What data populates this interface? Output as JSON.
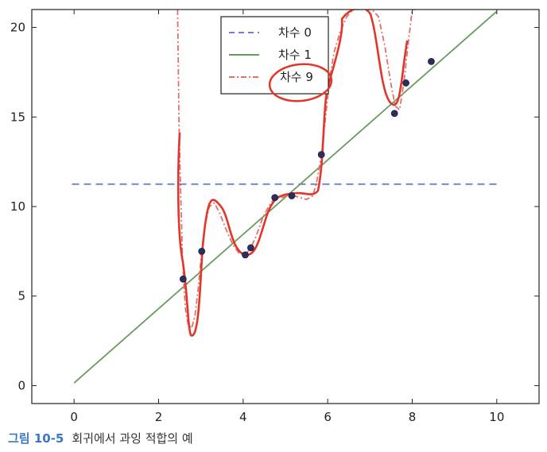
{
  "chart_data": {
    "type": "line",
    "title": "",
    "xlabel": "",
    "ylabel": "",
    "xlim": [
      -1,
      11
    ],
    "ylim": [
      -1,
      21
    ],
    "xticks": [
      0,
      2,
      4,
      6,
      8,
      10
    ],
    "yticks": [
      0,
      5,
      10,
      15,
      20
    ],
    "grid": false,
    "legend_position": "top-center",
    "points": [
      {
        "x": 2.58,
        "y": 5.95
      },
      {
        "x": 3.02,
        "y": 7.5
      },
      {
        "x": 4.05,
        "y": 7.3
      },
      {
        "x": 4.18,
        "y": 7.7
      },
      {
        "x": 4.75,
        "y": 10.5
      },
      {
        "x": 5.15,
        "y": 10.6
      },
      {
        "x": 5.85,
        "y": 12.9
      },
      {
        "x": 7.58,
        "y": 15.2
      },
      {
        "x": 7.85,
        "y": 16.9
      },
      {
        "x": 8.45,
        "y": 18.1
      }
    ],
    "series": [
      {
        "name": "차수 0",
        "style": "dashed",
        "color": "#6b7fd4",
        "x": [
          -0.05,
          10
        ],
        "y": [
          11.25,
          11.25
        ]
      },
      {
        "name": "차수 1",
        "style": "solid",
        "color": "#6a9a60",
        "x": [
          0,
          10
        ],
        "y": [
          0.15,
          20.9
        ]
      },
      {
        "name": "차수 9",
        "style": "dashdot",
        "color": "#e3706c",
        "x": [
          2.45,
          2.48,
          2.52,
          2.56,
          2.6,
          2.64,
          2.7,
          2.78,
          2.86,
          2.94,
          3.02,
          3.1,
          3.2,
          3.32,
          3.45,
          3.6,
          3.75,
          3.9,
          4.05,
          4.18,
          4.3,
          4.45,
          4.6,
          4.75,
          4.9,
          5.05,
          5.2,
          5.35,
          5.5,
          5.65,
          5.75,
          5.85,
          5.95,
          6.05,
          6.15,
          6.3,
          6.45,
          6.6,
          6.75,
          6.9,
          7.05,
          7.2,
          7.35,
          7.5,
          7.6,
          7.7,
          7.8,
          7.9,
          8.0,
          8.08
        ],
        "y": [
          21,
          15,
          11,
          7.5,
          5.5,
          4.2,
          3.4,
          3.2,
          3.9,
          5.5,
          7.5,
          9.0,
          10.0,
          10.2,
          9.6,
          8.7,
          7.9,
          7.4,
          7.3,
          7.7,
          8.3,
          9.3,
          10.0,
          10.5,
          10.5,
          10.6,
          10.6,
          10.5,
          10.4,
          10.6,
          11.5,
          12.9,
          15.0,
          17.2,
          18.6,
          19.8,
          20.6,
          21,
          21,
          21,
          21,
          20.6,
          19.0,
          16.8,
          15.6,
          15.4,
          16.9,
          19.0,
          21,
          21
        ]
      }
    ]
  },
  "legend": {
    "entries": [
      "차수 0",
      "차수 1",
      "차수 9"
    ]
  },
  "caption": {
    "label": "그림 10-5",
    "text": "회귀에서 과잉 적합의 예"
  }
}
